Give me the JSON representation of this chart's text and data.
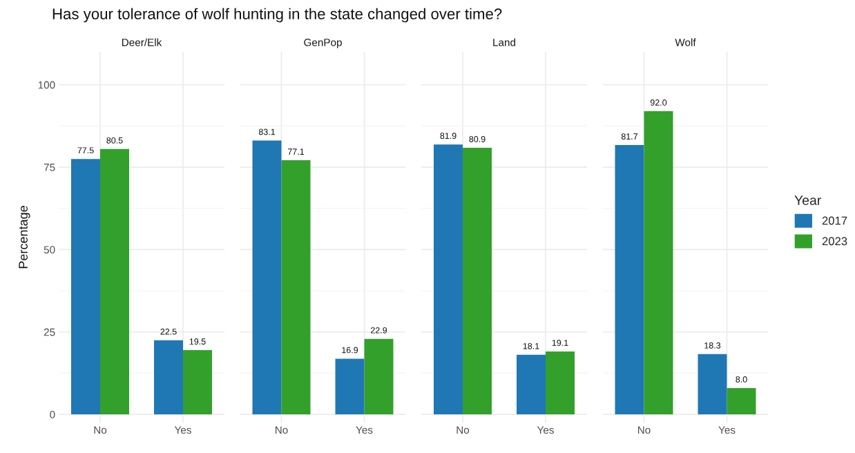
{
  "chart_data": [
    {
      "type": "bar",
      "title": "Has your tolerance of wolf hunting in the state changed over time?",
      "subtitle": "Deer/Elk",
      "ylabel": "Percentage",
      "categories": [
        "No",
        "Yes"
      ],
      "ylim": [
        -2.5,
        110
      ],
      "yticks": [
        0,
        25,
        50,
        75,
        100
      ],
      "grid": true,
      "legend": "right",
      "legend_title": "Year",
      "series": [
        {
          "name": "2017",
          "color": "#1f78b4",
          "values": [
            77.5,
            22.5
          ],
          "value_labels": [
            "77.5",
            "22.5"
          ]
        },
        {
          "name": "2023",
          "color": "#33a02c",
          "values": [
            80.5,
            19.5
          ],
          "value_labels": [
            "80.5",
            "19.5"
          ]
        }
      ]
    },
    {
      "type": "bar",
      "subtitle": "GenPop",
      "categories": [
        "No",
        "Yes"
      ],
      "ylim": [
        -2.5,
        110
      ],
      "yticks": [
        0,
        25,
        50,
        75,
        100
      ],
      "grid": true,
      "legend": false,
      "tick_labels": "x",
      "series": [
        {
          "name": "2017",
          "color": "#1f78b4",
          "values": [
            83.1,
            16.9
          ],
          "value_labels": [
            "83.1",
            "16.9"
          ]
        },
        {
          "name": "2023",
          "color": "#33a02c",
          "values": [
            77.1,
            22.9
          ],
          "value_labels": [
            "77.1",
            "22.9"
          ]
        }
      ]
    },
    {
      "type": "bar",
      "subtitle": "Land",
      "categories": [
        "No",
        "Yes"
      ],
      "ylim": [
        -2.5,
        110
      ],
      "yticks": [
        0,
        25,
        50,
        75,
        100
      ],
      "grid": true,
      "legend": false,
      "tick_labels": "x",
      "series": [
        {
          "name": "2017",
          "color": "#1f78b4",
          "values": [
            81.9,
            18.1
          ],
          "value_labels": [
            "81.9",
            "18.1"
          ]
        },
        {
          "name": "2023",
          "color": "#33a02c",
          "values": [
            80.9,
            19.1
          ],
          "value_labels": [
            "80.9",
            "19.1"
          ]
        }
      ]
    },
    {
      "type": "bar",
      "subtitle": "Wolf",
      "categories": [
        "No",
        "Yes"
      ],
      "ylim": [
        -2.5,
        110
      ],
      "yticks": [
        0,
        25,
        50,
        75,
        100
      ],
      "grid": true,
      "legend": false,
      "tick_labels": "x",
      "series": [
        {
          "name": "2017",
          "color": "#1f78b4",
          "values": [
            81.7,
            18.3
          ],
          "value_labels": [
            "81.7",
            "18.3"
          ]
        },
        {
          "name": "2023",
          "color": "#33a02c",
          "values": [
            92.0,
            8.0
          ],
          "value_labels": [
            "92.0",
            "8.0"
          ]
        }
      ]
    }
  ]
}
